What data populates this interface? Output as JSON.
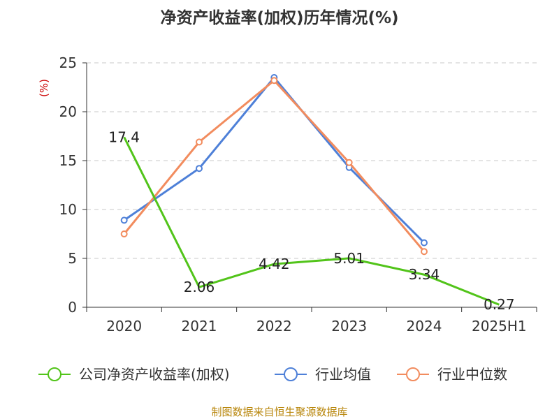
{
  "chart_data": {
    "type": "line",
    "title": "净资产收益率(加权)历年情况(%)",
    "unit_label": "(%)",
    "categories": [
      "2020",
      "2021",
      "2022",
      "2023",
      "2024",
      "2025H1"
    ],
    "ylim": [
      0,
      25
    ],
    "yticks": [
      0,
      5,
      10,
      15,
      20,
      25
    ],
    "grid": true,
    "legend_position": "bottom",
    "series": [
      {
        "name": "公司净资产收益率(加权)",
        "color": "#52c41a",
        "values": [
          17.4,
          2.06,
          4.42,
          5.01,
          3.34,
          0.27
        ],
        "labels": [
          "17.4",
          "2.06",
          "4.42",
          "5.01",
          "3.34",
          "0.27"
        ]
      },
      {
        "name": "行业均值",
        "color": "#4e80d8",
        "values": [
          8.9,
          14.2,
          23.5,
          14.3,
          6.6,
          null
        ]
      },
      {
        "name": "行业中位数",
        "color": "#f28c5e",
        "values": [
          7.5,
          16.9,
          23.2,
          14.8,
          5.7,
          null
        ]
      }
    ]
  },
  "source": "制图数据来自恒生聚源数据库"
}
